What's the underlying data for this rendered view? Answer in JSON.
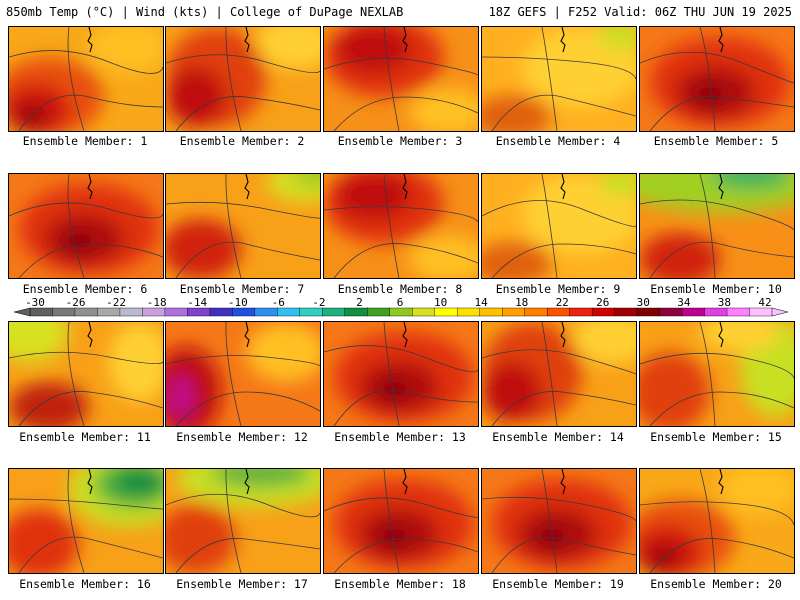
{
  "header": {
    "left": "850mb Temp (°C) | Wind (kts) | College of DuPage NEXLAB",
    "right": "18Z GEFS | F252 Valid: 06Z THU JUN 19 2025"
  },
  "colorbar": {
    "ticks": [
      "-30",
      "-26",
      "-22",
      "-18",
      "-14",
      "-10",
      "-6",
      "-2",
      "2",
      "6",
      "10",
      "14",
      "18",
      "22",
      "26",
      "30",
      "34",
      "38",
      "42"
    ],
    "colors": [
      "#606060",
      "#787878",
      "#909090",
      "#a8a8a8",
      "#b8b8d0",
      "#c8a0e0",
      "#b070e0",
      "#8040d0",
      "#4030c0",
      "#2050e0",
      "#3090f0",
      "#30c0f0",
      "#30d0c0",
      "#20b080",
      "#109040",
      "#40a020",
      "#90c820",
      "#d8e020",
      "#ffff00",
      "#ffe000",
      "#ffc000",
      "#ffa000",
      "#ff8000",
      "#ff5000",
      "#f02010",
      "#d00000",
      "#a00000",
      "#800000",
      "#900040",
      "#c00090",
      "#e040e0",
      "#ff80ff",
      "#ffc0ff"
    ]
  },
  "members": [
    {
      "caption": "Ensemble Member: 1",
      "style": "hot-sw"
    },
    {
      "caption": "Ensemble Member: 2",
      "style": "hot-w"
    },
    {
      "caption": "Ensemble Member: 3",
      "style": "hot-n"
    },
    {
      "caption": "Ensemble Member: 4",
      "style": "mild"
    },
    {
      "caption": "Ensemble Member: 5",
      "style": "hot-c"
    },
    {
      "caption": "Ensemble Member: 6",
      "style": "hot-c"
    },
    {
      "caption": "Ensemble Member: 7",
      "style": "cool-ne"
    },
    {
      "caption": "Ensemble Member: 8",
      "style": "hot-n"
    },
    {
      "caption": "Ensemble Member: 9",
      "style": "mild"
    },
    {
      "caption": "Ensemble Member: 10",
      "style": "cool-n"
    },
    {
      "caption": "Ensemble Member: 11",
      "style": "cool-nw"
    },
    {
      "caption": "Ensemble Member: 12",
      "style": "hot-sw-pink"
    },
    {
      "caption": "Ensemble Member: 13",
      "style": "hot-c"
    },
    {
      "caption": "Ensemble Member: 14",
      "style": "hot-w"
    },
    {
      "caption": "Ensemble Member: 15",
      "style": "cool-e"
    },
    {
      "caption": "Ensemble Member: 16",
      "style": "cold-ne"
    },
    {
      "caption": "Ensemble Member: 17",
      "style": "cold-n"
    },
    {
      "caption": "Ensemble Member: 18",
      "style": "hot-c"
    },
    {
      "caption": "Ensemble Member: 19",
      "style": "hot-c"
    },
    {
      "caption": "Ensemble Member: 20",
      "style": "hot-sw"
    }
  ]
}
